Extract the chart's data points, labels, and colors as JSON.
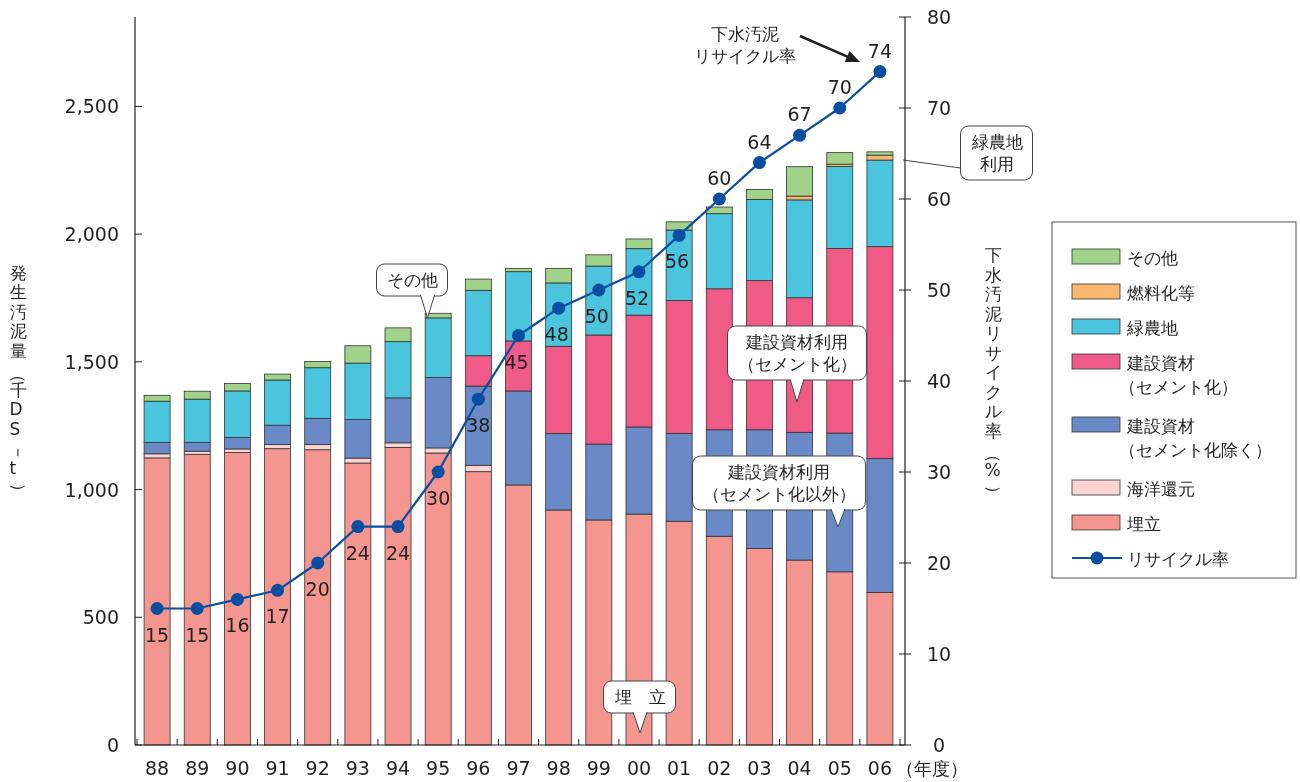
{
  "chart_data": {
    "type": "bar",
    "stacked": true,
    "categories": [
      "88",
      "89",
      "90",
      "91",
      "92",
      "93",
      "94",
      "95",
      "96",
      "97",
      "98",
      "99",
      "00",
      "01",
      "02",
      "03",
      "04",
      "05",
      "06"
    ],
    "xlabel": "（年度）",
    "ylabel": "発生汚泥量（千DS－t）",
    "y2label": "下水汚泥リサイクル率（%）",
    "ylim": [
      0,
      2850
    ],
    "yticks": [
      0,
      500,
      {
        "value": 1000,
        "label": "1,000"
      },
      {
        "value": 1500,
        "label": "1,500"
      },
      {
        "value": 2000,
        "label": "2,000"
      },
      {
        "value": 2500,
        "label": "2,500"
      }
    ],
    "y2lim": [
      0,
      80
    ],
    "y2ticks": [
      0,
      10,
      20,
      30,
      40,
      50,
      60,
      70,
      80
    ],
    "legend": "right",
    "grid": false,
    "series": [
      {
        "name": "埋立",
        "color": "#f4968f",
        "values": [
          1124,
          1138,
          1145,
          1160,
          1156,
          1104,
          1165,
          1143,
          1070,
          1018,
          920,
          881,
          904,
          876,
          817,
          769,
          724,
          678,
          597
        ]
      },
      {
        "name": "海洋還元",
        "color": "#fcd5d3",
        "values": [
          16,
          12,
          14,
          16,
          20,
          19,
          18,
          20,
          25,
          0,
          0,
          0,
          0,
          0,
          0,
          0,
          0,
          0,
          0
        ]
      },
      {
        "name": "建設資材（セメント化除く）",
        "color": "#6a8ac7",
        "values": [
          45,
          35,
          45,
          76,
          103,
          151,
          176,
          276,
          310,
          368,
          299,
          297,
          341,
          344,
          417,
          465,
          500,
          543,
          524
        ]
      },
      {
        "name": "建設資材（セメント化）",
        "color": "#ef5a87",
        "values": [
          0,
          0,
          0,
          0,
          0,
          0,
          0,
          0,
          119,
          196,
          342,
          427,
          438,
          520,
          552,
          584,
          527,
          723,
          830
        ]
      },
      {
        "name": "緑農地",
        "color": "#4bc4de",
        "values": [
          161,
          169,
          182,
          177,
          198,
          221,
          220,
          233,
          256,
          271,
          248,
          270,
          260,
          276,
          294,
          318,
          383,
          321,
          339
        ]
      },
      {
        "name": "燃料化等",
        "color": "#f9b86e",
        "values": [
          0,
          0,
          0,
          0,
          0,
          0,
          0,
          0,
          0,
          0,
          0,
          0,
          0,
          0,
          0,
          null,
          15,
          9,
          19
        ]
      },
      {
        "name": "その他",
        "color": "#a0d28a",
        "values": [
          23,
          31,
          29,
          23,
          24,
          68,
          54,
          18,
          44,
          13,
          57,
          44,
          38,
          32,
          26,
          39,
          115,
          45,
          13
        ]
      },
      {
        "name": "リサイクル率",
        "type": "line",
        "axis": "y2",
        "color": "#0a4ea2",
        "marker": "circle",
        "line_style": "solid",
        "values": [
          15,
          15,
          16,
          17,
          20,
          24,
          24,
          30,
          38,
          45,
          48,
          50,
          52,
          56,
          60,
          64,
          67,
          70,
          74
        ],
        "value_labels": [
          "15",
          "15",
          "16",
          "17",
          "20",
          "24",
          "24",
          "30",
          "38",
          "45",
          "48",
          "50",
          "52",
          "56",
          "60",
          "64",
          "67",
          "70",
          "74"
        ]
      }
    ],
    "annotations": [
      "その他",
      "緑農地利用",
      "建設資材利用（セメント化）",
      "建設資材利用（セメント化以外）",
      "埋　立",
      "下水汚泥リサイクル率"
    ]
  }
}
